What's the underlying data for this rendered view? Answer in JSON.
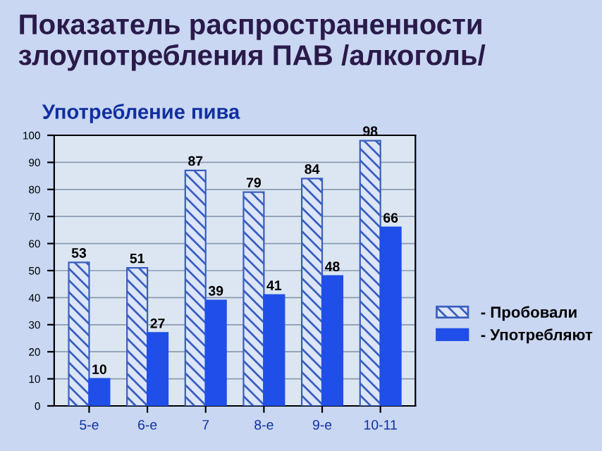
{
  "chart_data": {
    "type": "bar",
    "title": "Показатель распространенности\nзлоупотребления ПАВ /алкоголь/",
    "subtitle": "Употребление пива",
    "categories": [
      "5-е",
      "6-е",
      "7",
      "8-е",
      "9-е",
      "10-11"
    ],
    "series": [
      {
        "name": "- Пробовали",
        "color": "#3a5fc0",
        "values": [
          53,
          51,
          87,
          79,
          84,
          98
        ]
      },
      {
        "name": "- Употребляют",
        "color": "#1f4fe8",
        "values": [
          10,
          27,
          39,
          41,
          48,
          66
        ]
      }
    ],
    "ylim": [
      0,
      100
    ],
    "yticks": [
      0,
      10,
      20,
      30,
      40,
      50,
      60,
      70,
      80,
      90,
      100
    ],
    "grid": "y",
    "legend": "right",
    "data_labels": true
  }
}
